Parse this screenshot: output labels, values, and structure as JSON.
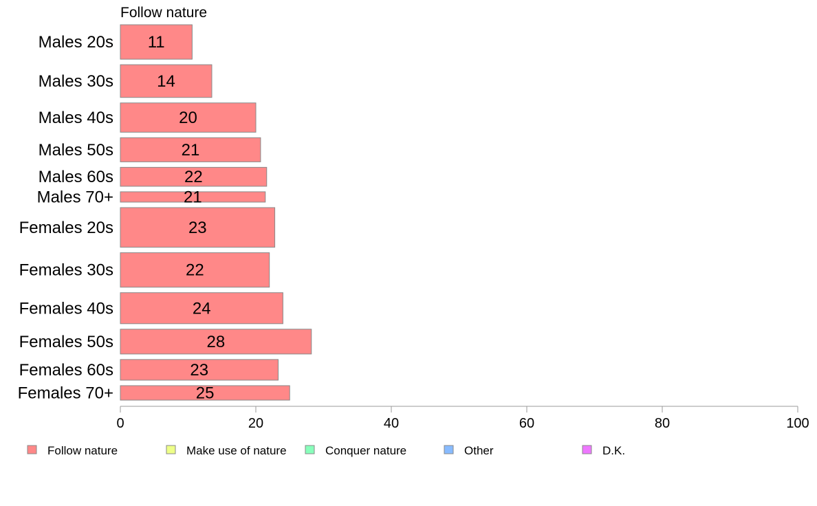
{
  "chart_data": {
    "type": "bar",
    "orientation": "horizontal",
    "panel_title": "Follow nature",
    "categories": [
      "Males 20s",
      "Males 30s",
      "Males 40s",
      "Males 50s",
      "Males 60s",
      "Males 70+",
      "Females 20s",
      "Females 30s",
      "Females 40s",
      "Females 50s",
      "Females 60s",
      "Females 70+"
    ],
    "relative_group_size": [
      1.0,
      0.95,
      0.85,
      0.7,
      0.55,
      0.3,
      1.15,
      1.0,
      0.9,
      0.72,
      0.6,
      0.42
    ],
    "series": [
      {
        "name": "Follow nature",
        "values": [
          10.6,
          13.5,
          20.0,
          20.7,
          21.6,
          21.4,
          22.8,
          22.0,
          24.0,
          28.2,
          23.3,
          25.0
        ],
        "labels": [
          "11",
          "14",
          "20",
          "21",
          "22",
          "21",
          "23",
          "22",
          "24",
          "28",
          "23",
          "25"
        ]
      }
    ],
    "xlim": [
      0,
      100
    ],
    "xticks": [
      0,
      20,
      40,
      60,
      80,
      100
    ],
    "grid": false,
    "legend_position": "bottom",
    "legend": [
      {
        "name": "Follow nature",
        "color": "#ff8888"
      },
      {
        "name": "Make use of nature",
        "color": "#eeff88"
      },
      {
        "name": "Conquer nature",
        "color": "#88ffbb"
      },
      {
        "name": "Other",
        "color": "#88bbff"
      },
      {
        "name": "D.K.",
        "color": "#ee77ff"
      }
    ],
    "bar_color": "#ff8888",
    "bar_stroke": "#888888",
    "axis_color": "#999999"
  }
}
